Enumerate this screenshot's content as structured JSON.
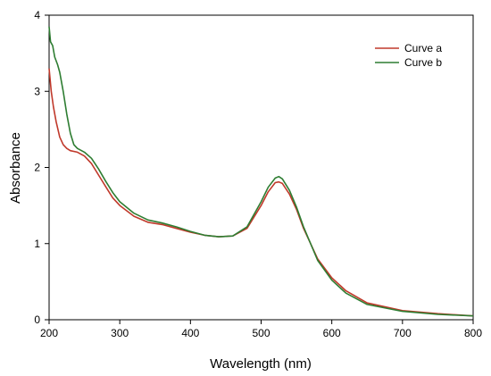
{
  "chart_data": {
    "type": "line",
    "xlabel": "Wavelength (nm)",
    "ylabel": "Absorbance",
    "xlim": [
      200,
      800
    ],
    "ylim": [
      0,
      4
    ],
    "xticks": [
      200,
      300,
      400,
      500,
      600,
      700,
      800
    ],
    "yticks": [
      0,
      1,
      2,
      3,
      4
    ],
    "grid": false,
    "legend_position": "top-right",
    "series": [
      {
        "name": "Curve a",
        "color": "#c0392b",
        "x": [
          200,
          203,
          206,
          210,
          215,
          220,
          225,
          230,
          240,
          250,
          260,
          270,
          280,
          290,
          300,
          320,
          340,
          360,
          380,
          400,
          420,
          440,
          460,
          480,
          500,
          510,
          520,
          525,
          530,
          540,
          550,
          560,
          580,
          600,
          620,
          650,
          700,
          750,
          800
        ],
        "y": [
          3.3,
          3.0,
          2.8,
          2.6,
          2.4,
          2.3,
          2.25,
          2.22,
          2.2,
          2.15,
          2.05,
          1.9,
          1.75,
          1.6,
          1.5,
          1.36,
          1.28,
          1.25,
          1.2,
          1.15,
          1.11,
          1.09,
          1.1,
          1.2,
          1.5,
          1.68,
          1.8,
          1.81,
          1.79,
          1.65,
          1.45,
          1.2,
          0.8,
          0.55,
          0.38,
          0.22,
          0.12,
          0.08,
          0.05
        ]
      },
      {
        "name": "Curve b",
        "color": "#2e7d32",
        "x": [
          200,
          202,
          205,
          208,
          212,
          215,
          220,
          225,
          230,
          235,
          240,
          250,
          260,
          270,
          280,
          290,
          300,
          320,
          340,
          360,
          380,
          400,
          420,
          440,
          460,
          480,
          500,
          510,
          520,
          525,
          530,
          540,
          550,
          560,
          580,
          600,
          620,
          650,
          700,
          750,
          800
        ],
        "y": [
          3.85,
          3.65,
          3.6,
          3.45,
          3.35,
          3.25,
          3.0,
          2.7,
          2.45,
          2.3,
          2.25,
          2.2,
          2.12,
          1.98,
          1.82,
          1.67,
          1.55,
          1.4,
          1.31,
          1.27,
          1.22,
          1.16,
          1.11,
          1.09,
          1.1,
          1.22,
          1.55,
          1.74,
          1.86,
          1.88,
          1.85,
          1.7,
          1.48,
          1.22,
          0.78,
          0.52,
          0.35,
          0.2,
          0.11,
          0.07,
          0.05
        ]
      }
    ]
  }
}
